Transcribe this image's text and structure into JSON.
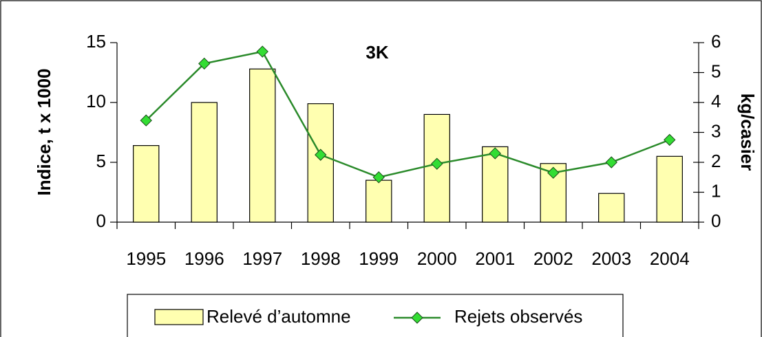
{
  "chart_data": {
    "type": "bar",
    "title": "3K",
    "categories": [
      "1995",
      "1996",
      "1997",
      "1998",
      "1999",
      "2000",
      "2001",
      "2002",
      "2003",
      "2004"
    ],
    "series": [
      {
        "name": "Relevé d’automne",
        "type": "bar",
        "color": "#ffffb0",
        "values": [
          6.4,
          10.0,
          12.8,
          9.9,
          3.5,
          9.0,
          6.3,
          4.9,
          2.4,
          5.5
        ]
      },
      {
        "name": "Rejets observés",
        "type": "line",
        "axis": "y2",
        "color": "#2a8a2a",
        "marker_color": "#33dd33",
        "values": [
          3.4,
          5.3,
          5.7,
          2.25,
          1.5,
          1.95,
          2.3,
          1.65,
          2.0,
          2.75
        ]
      }
    ],
    "ylabel": "Indice, t x 1000",
    "y2label": "kg/casier",
    "ylim": [
      0,
      15
    ],
    "yticks": [
      0,
      5,
      10,
      15
    ],
    "y2lim": [
      0,
      6
    ],
    "y2ticks": [
      0,
      1,
      2,
      3,
      4,
      5,
      6
    ],
    "legend": "bottom"
  }
}
